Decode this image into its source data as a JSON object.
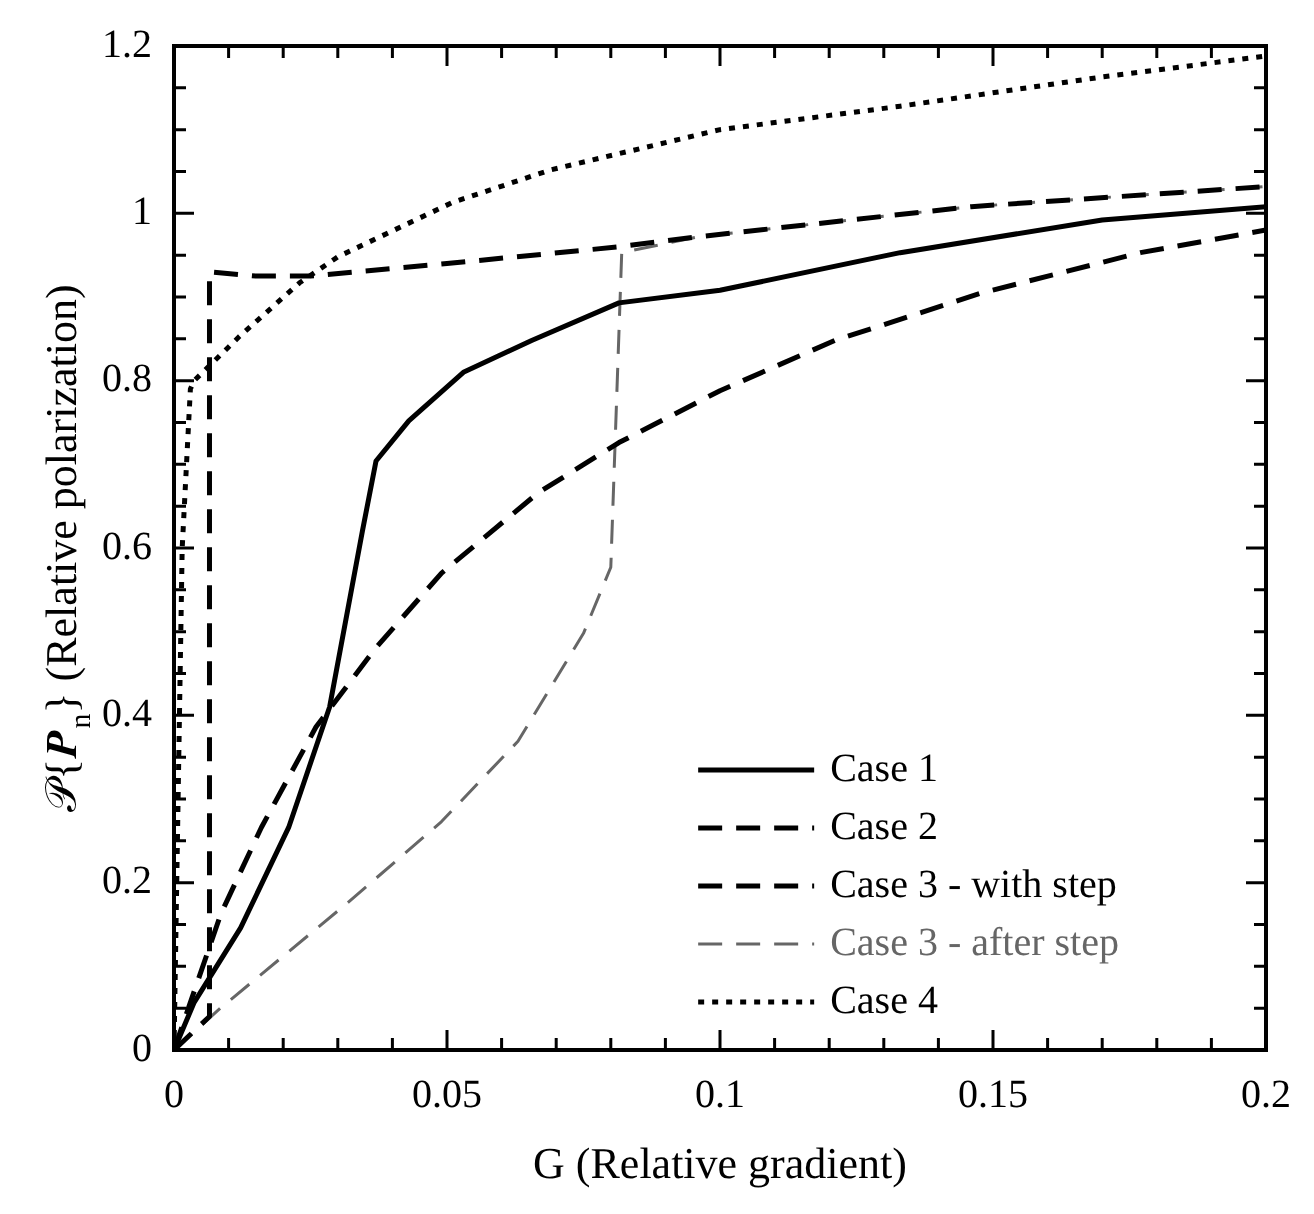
{
  "chart_data": {
    "type": "line",
    "xlabel": "G (Relative gradient)",
    "ylabel": "𝒫{𝑷$_{n}$} (Relative polarization)",
    "xlim": [
      0,
      0.2
    ],
    "ylim": [
      0,
      1.2
    ],
    "xticks": [
      0,
      {
        "value": 0.01,
        "label": null
      },
      {
        "value": 0.02,
        "label": null
      },
      {
        "value": 0.03,
        "label": null
      },
      {
        "value": 0.04,
        "label": null
      },
      0.05,
      {
        "value": 0.06,
        "label": null
      },
      {
        "value": 0.07,
        "label": null
      },
      {
        "value": 0.08,
        "label": null
      },
      {
        "value": 0.09,
        "label": null
      },
      0.1,
      {
        "value": 0.11,
        "label": null
      },
      {
        "value": 0.12,
        "label": null
      },
      {
        "value": 0.13,
        "label": null
      },
      {
        "value": 0.14,
        "label": null
      },
      0.15,
      {
        "value": 0.16,
        "label": null
      },
      {
        "value": 0.17,
        "label": null
      },
      {
        "value": 0.18,
        "label": null
      },
      {
        "value": 0.19,
        "label": null
      },
      0.2
    ],
    "yticks": [
      0,
      {
        "value": 0.05,
        "label": null
      },
      {
        "value": 0.1,
        "label": null
      },
      {
        "value": 0.15,
        "label": null
      },
      0.2,
      {
        "value": 0.25,
        "label": null
      },
      {
        "value": 0.3,
        "label": null
      },
      {
        "value": 0.35,
        "label": null
      },
      0.4,
      {
        "value": 0.45,
        "label": null
      },
      {
        "value": 0.5,
        "label": null
      },
      {
        "value": 0.55,
        "label": null
      },
      0.6,
      {
        "value": 0.65,
        "label": null
      },
      {
        "value": 0.7,
        "label": null
      },
      {
        "value": 0.75,
        "label": null
      },
      0.8,
      {
        "value": 0.85,
        "label": null
      },
      {
        "value": 0.9,
        "label": null
      },
      {
        "value": 0.95,
        "label": null
      },
      1,
      {
        "value": 1.05,
        "label": null
      },
      {
        "value": 1.1,
        "label": null
      },
      {
        "value": 1.15,
        "label": null
      },
      1.2
    ],
    "grid": false,
    "legend": "bottom right",
    "marker": "none",
    "series": [
      {
        "name": "Case 1",
        "color": "#000000",
        "line_style": "solid",
        "x": [
          0,
          0.0037,
          0.0122,
          0.021,
          0.0285,
          0.0345,
          0.037,
          0.043,
          0.053,
          0.0655,
          0.0815,
          0.1,
          0.133,
          0.17,
          0.2
        ],
        "values": [
          0,
          0.057,
          0.146,
          0.266,
          0.41,
          0.62,
          0.704,
          0.752,
          0.81,
          0.848,
          0.893,
          0.908,
          0.953,
          0.992,
          1.008
        ]
      },
      {
        "name": "Case 2",
        "color": "#000000",
        "line_style": "dashed",
        "x": [
          0,
          0.0086,
          0.016,
          0.026,
          0.037,
          0.049,
          0.0667,
          0.0815,
          0.1,
          0.121,
          0.148,
          0.177,
          0.2
        ],
        "values": [
          0,
          0.163,
          0.266,
          0.386,
          0.481,
          0.57,
          0.666,
          0.726,
          0.788,
          0.848,
          0.905,
          0.953,
          0.98
        ]
      },
      {
        "name": "Case 3 - with step",
        "color": "#000000",
        "line_style": "dashed",
        "x": [
          0,
          0.0065,
          0.0065,
          0.015,
          0.025,
          0.05,
          0.0815,
          0.096,
          0.146,
          0.2
        ],
        "values": [
          0,
          0.04,
          0.93,
          0.925,
          0.925,
          0.94,
          0.96,
          0.972,
          1.008,
          1.032
        ]
      },
      {
        "name": "Case 3 - after step",
        "color": "#666666",
        "line_style": "dashed",
        "x": [
          0,
          0.0085,
          0.032,
          0.049,
          0.063,
          0.075,
          0.08,
          0.082,
          0.096,
          0.146,
          0.2
        ],
        "values": [
          0,
          0.05,
          0.177,
          0.273,
          0.369,
          0.498,
          0.577,
          0.953,
          0.972,
          1.008,
          1.032
        ]
      },
      {
        "name": "Case 4",
        "color": "#000000",
        "line_style": "dotted",
        "x": [
          0,
          0.0015,
          0.003,
          0.0037,
          0.012,
          0.023,
          0.03,
          0.051,
          0.069,
          0.1,
          0.133,
          0.17,
          0.2
        ],
        "values": [
          0,
          0.6,
          0.79,
          0.8,
          0.853,
          0.917,
          0.948,
          1.013,
          1.052,
          1.1,
          1.128,
          1.163,
          1.188
        ]
      }
    ]
  }
}
